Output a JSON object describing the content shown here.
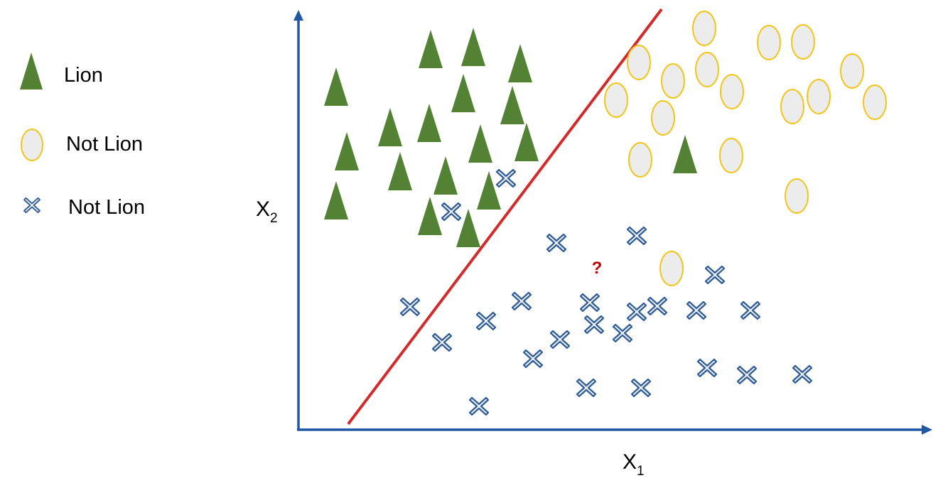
{
  "colors": {
    "lion": "#548235",
    "not_lion_circle_fill": "#ececec",
    "not_lion_circle_stroke": "#f3c51b",
    "not_lion_cross_fill": "#eeeeee",
    "not_lion_cross_stroke": "#2e5d9a",
    "axis": "#1f57a4",
    "boundary": "#d12b2b",
    "query": "#c00000"
  },
  "legend": [
    {
      "label": "Lion",
      "icon": "triangle-icon"
    },
    {
      "label": "Not Lion",
      "icon": "circle-icon"
    },
    {
      "label": "Not Lion",
      "icon": "cross-icon"
    }
  ],
  "axes": {
    "x_label": "X",
    "x_sub": "1",
    "y_label": "X",
    "y_sub": "2"
  },
  "query_label": "?"
}
